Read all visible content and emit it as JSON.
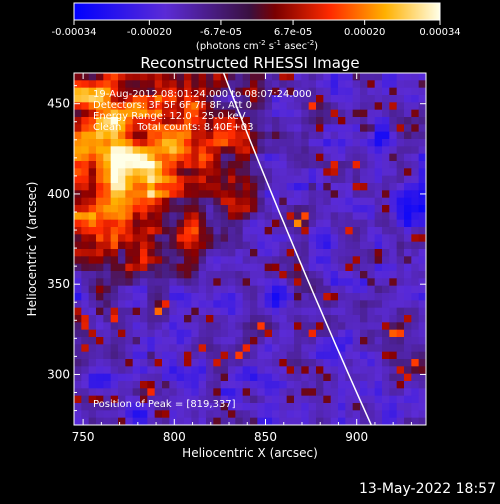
{
  "colorbar": {
    "ticks": [
      "-0.00034",
      "-0.00020",
      "-6.7e-05",
      "6.7e-05",
      "0.00020",
      "0.00034"
    ],
    "units_main": "(photons cm",
    "units_sup1": "-2",
    "units_mid": " s",
    "units_sup2": "-1",
    "units_mid2": " asec",
    "units_sup3": "-2",
    "units_end": ")",
    "vmin": -0.00034,
    "vmax": 0.00034
  },
  "chart_data": {
    "type": "heatmap",
    "title": "Reconstructed RHESSI Image",
    "xlabel": "Heliocentric X (arcsec)",
    "ylabel": "Heliocentric Y (arcsec)",
    "xlim": [
      745,
      938
    ],
    "ylim": [
      272,
      467
    ],
    "xticks": [
      "750",
      "800",
      "850",
      "900"
    ],
    "yticks": [
      "300",
      "350",
      "400",
      "450"
    ],
    "xtick_values": [
      750,
      800,
      850,
      900
    ],
    "ytick_values": [
      300,
      350,
      400,
      450
    ],
    "colormap": "blue-purple-red-yellow-white",
    "limb_curve": true,
    "peak_position": [
      819,
      337
    ],
    "info_lines": [
      "19-Aug-2012 08:01:24.000 to 08:07:24.000",
      "Detectors: 3F 5F 6F 7F 8F, Att 0",
      "Energy Range: 12.0 - 25.0 keV",
      "Clean     Total counts: 8.40E+03"
    ],
    "peak_label": "Position of Peak = [819,337]"
  },
  "footer": {
    "date": "13-May-2022 18:57"
  }
}
